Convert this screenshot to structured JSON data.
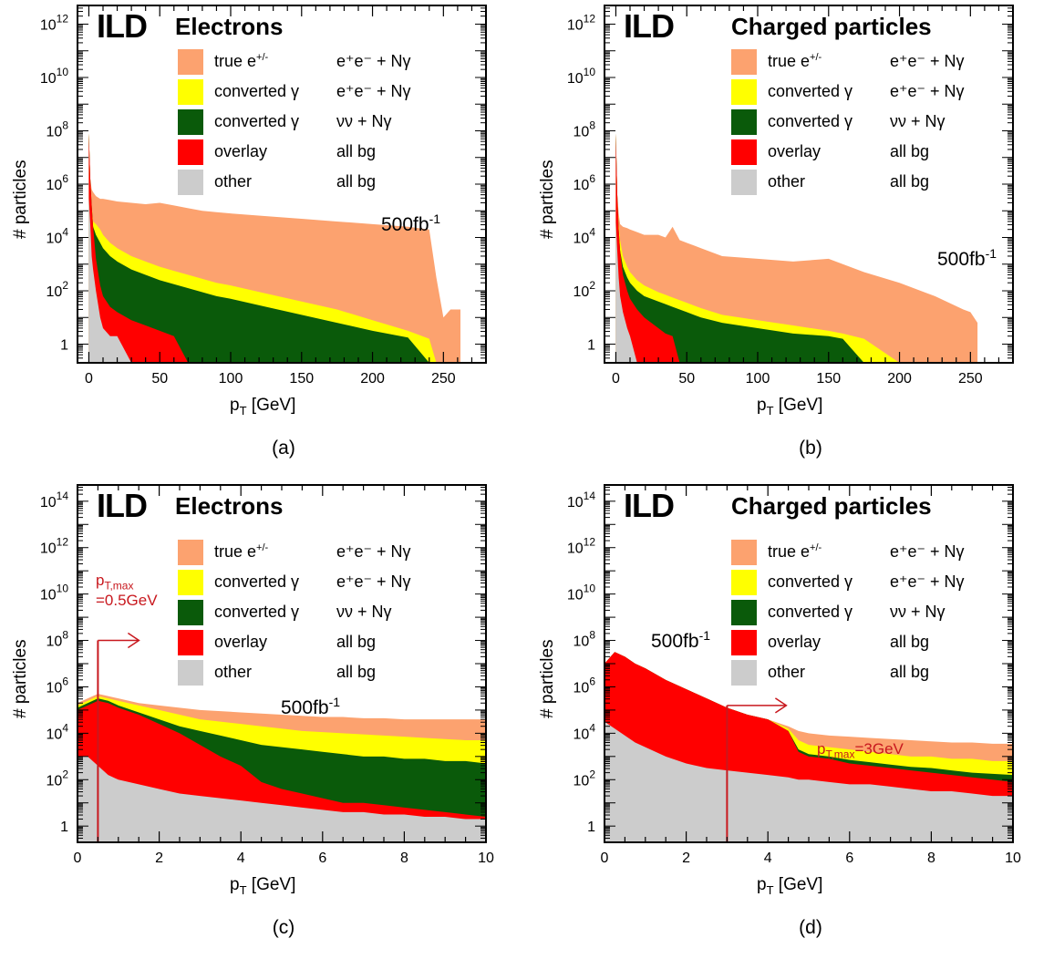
{
  "figure": {
    "panels": [
      {
        "id": "a",
        "sublabel": "(a)",
        "ild": "ILD",
        "title": "Electrons",
        "lumi": "500fb",
        "lumi_sup": "-1",
        "ylabel": "# particles",
        "xlabel_main": "p",
        "xlabel_sub": "T",
        "xlabel_unit": " [GeV]",
        "legend": [
          {
            "label_main": "true e",
            "label_sup": "+/-",
            "process": "e⁺e⁻ + Nγ",
            "color": "#fca26f"
          },
          {
            "label_main": "converted γ",
            "label_sup": "",
            "process": "e⁺e⁻ + Nγ",
            "color": "#ffff00"
          },
          {
            "label_main": "converted γ",
            "label_sup": "",
            "process": "νν + Nγ",
            "color": "#0a5a0a"
          },
          {
            "label_main": "overlay",
            "label_sup": "",
            "process": "all bg",
            "color": "#ff0000"
          },
          {
            "label_main": "other",
            "label_sup": "",
            "process": "all bg",
            "color": "#cccccc"
          }
        ]
      },
      {
        "id": "b",
        "sublabel": "(b)",
        "ild": "ILD",
        "title": "Charged particles",
        "lumi": "500fb",
        "lumi_sup": "-1",
        "ylabel": "# particles",
        "xlabel_main": "p",
        "xlabel_sub": "T",
        "xlabel_unit": " [GeV]",
        "legend": [
          {
            "label_main": "true e",
            "label_sup": "+/-",
            "process": "e⁺e⁻ + Nγ",
            "color": "#fca26f"
          },
          {
            "label_main": "converted γ",
            "label_sup": "",
            "process": "e⁺e⁻ + Nγ",
            "color": "#ffff00"
          },
          {
            "label_main": "converted γ",
            "label_sup": "",
            "process": "νν + Nγ",
            "color": "#0a5a0a"
          },
          {
            "label_main": "overlay",
            "label_sup": "",
            "process": "all bg",
            "color": "#ff0000"
          },
          {
            "label_main": "other",
            "label_sup": "",
            "process": "all bg",
            "color": "#cccccc"
          }
        ]
      },
      {
        "id": "c",
        "sublabel": "(c)",
        "ild": "ILD",
        "title": "Electrons",
        "lumi": "500fb",
        "lumi_sup": "-1",
        "ylabel": "# particles",
        "xlabel_main": "p",
        "xlabel_sub": "T",
        "xlabel_unit": " [GeV]",
        "annotation_main": "p",
        "annotation_sub": "T,max",
        "annotation_value": "=0.5GeV",
        "legend": [
          {
            "label_main": "true e",
            "label_sup": "+/-",
            "process": "e⁺e⁻ + Nγ",
            "color": "#fca26f"
          },
          {
            "label_main": "converted γ",
            "label_sup": "",
            "process": "e⁺e⁻ + Nγ",
            "color": "#ffff00"
          },
          {
            "label_main": "converted γ",
            "label_sup": "",
            "process": "νν + Nγ",
            "color": "#0a5a0a"
          },
          {
            "label_main": "overlay",
            "label_sup": "",
            "process": "all bg",
            "color": "#ff0000"
          },
          {
            "label_main": "other",
            "label_sup": "",
            "process": "all bg",
            "color": "#cccccc"
          }
        ]
      },
      {
        "id": "d",
        "sublabel": "(d)",
        "ild": "ILD",
        "title": "Charged particles",
        "lumi": "500fb",
        "lumi_sup": "-1",
        "ylabel": "# particles",
        "xlabel_main": "p",
        "xlabel_sub": "T",
        "xlabel_unit": " [GeV]",
        "annotation_main": "p",
        "annotation_sub": "T,max",
        "annotation_value": "=3GeV",
        "legend": [
          {
            "label_main": "true e",
            "label_sup": "+/-",
            "process": "e⁺e⁻ + Nγ",
            "color": "#fca26f"
          },
          {
            "label_main": "converted γ",
            "label_sup": "",
            "process": "e⁺e⁻ + Nγ",
            "color": "#ffff00"
          },
          {
            "label_main": "converted γ",
            "label_sup": "",
            "process": "νν + Nγ",
            "color": "#0a5a0a"
          },
          {
            "label_main": "overlay",
            "label_sup": "",
            "process": "all bg",
            "color": "#ff0000"
          },
          {
            "label_main": "other",
            "label_sup": "",
            "process": "all bg",
            "color": "#cccccc"
          }
        ]
      }
    ]
  },
  "chart_data": [
    {
      "type": "area",
      "stacked": true,
      "log_y": true,
      "xlim": [
        -8,
        280
      ],
      "ylim_exp": [
        -0.7,
        12.7
      ],
      "xticks": [
        0,
        50,
        100,
        150,
        200,
        250
      ],
      "yticks_exp": [
        0,
        2,
        4,
        6,
        8,
        10,
        12
      ],
      "x": [
        0,
        1,
        2,
        3,
        5,
        8,
        10,
        15,
        20,
        30,
        40,
        50,
        60,
        70,
        80,
        90,
        100,
        125,
        150,
        175,
        200,
        225,
        240,
        245,
        250,
        255,
        262
      ],
      "series": [
        {
          "name": "other",
          "log10_values": [
            5.5,
            4.5,
            3.3,
            2.8,
            2.0,
            1.0,
            0.6,
            0.3,
            0.3,
            0,
            0,
            0,
            0,
            0,
            0,
            0,
            0,
            0,
            0,
            0,
            0,
            0,
            0,
            0,
            0,
            0,
            0
          ]
        },
        {
          "name": "overlay",
          "log10_values": [
            7.9,
            6.2,
            5.2,
            4.4,
            3.2,
            2.2,
            1.8,
            1.4,
            1.2,
            0.9,
            0.7,
            0.5,
            0.3,
            0,
            0,
            0,
            0,
            0,
            0,
            0,
            0,
            0,
            0,
            0,
            0,
            0,
            0
          ]
        },
        {
          "name": "converted γ (νν + Nγ)",
          "log10_values": [
            7.9,
            6.2,
            5.2,
            4.4,
            4.1,
            3.8,
            3.6,
            3.3,
            3.1,
            2.8,
            2.6,
            2.4,
            2.25,
            2.1,
            1.95,
            1.8,
            1.7,
            1.4,
            1.1,
            0.8,
            0.5,
            0.25,
            0,
            0,
            0,
            0,
            0
          ]
        },
        {
          "name": "converted γ (e⁺e⁻ + Nγ)",
          "log10_values": [
            7.9,
            6.2,
            5.2,
            4.6,
            4.5,
            4.3,
            4.1,
            3.8,
            3.6,
            3.3,
            3.1,
            2.9,
            2.75,
            2.6,
            2.45,
            2.3,
            2.2,
            1.9,
            1.6,
            1.3,
            0.9,
            0.5,
            0.2,
            0,
            0,
            0,
            0
          ]
        },
        {
          "name": "true e+/-",
          "log10_values": [
            7.9,
            6.2,
            5.8,
            5.7,
            5.55,
            5.45,
            5.45,
            5.4,
            5.35,
            5.3,
            5.25,
            5.3,
            5.2,
            5.1,
            5.0,
            4.95,
            4.9,
            4.8,
            4.7,
            4.6,
            4.5,
            4.4,
            4.3,
            2.5,
            1.0,
            1.3,
            1.3
          ]
        }
      ]
    },
    {
      "type": "area",
      "stacked": true,
      "log_y": true,
      "xlim": [
        -8,
        280
      ],
      "ylim_exp": [
        -0.7,
        12.7
      ],
      "xticks": [
        0,
        50,
        100,
        150,
        200,
        250
      ],
      "yticks_exp": [
        0,
        2,
        4,
        6,
        8,
        10,
        12
      ],
      "x": [
        0,
        1,
        2,
        3,
        5,
        8,
        10,
        15,
        20,
        30,
        35,
        40,
        45,
        50,
        60,
        75,
        100,
        125,
        150,
        160,
        175,
        200,
        225,
        245,
        250,
        255
      ],
      "series": [
        {
          "name": "other",
          "log10_values": [
            4.6,
            3.5,
            2.5,
            1.8,
            1.2,
            0.6,
            0.3,
            0,
            0,
            0,
            0,
            0,
            0,
            0,
            0,
            0,
            0,
            0,
            0,
            0,
            0,
            0,
            0,
            0,
            0,
            0
          ]
        },
        {
          "name": "overlay",
          "log10_values": [
            7.9,
            5.6,
            4.3,
            3.5,
            2.6,
            2.0,
            1.7,
            1.3,
            1.0,
            0.6,
            0.4,
            0.3,
            0,
            0,
            0,
            0,
            0,
            0,
            0,
            0,
            0,
            0,
            0,
            0,
            0,
            0
          ]
        },
        {
          "name": "converted γ (νν + Nγ)",
          "log10_values": [
            7.9,
            5.6,
            4.3,
            3.5,
            2.9,
            2.5,
            2.3,
            2.0,
            1.8,
            1.6,
            1.5,
            1.4,
            1.3,
            1.2,
            1.0,
            0.8,
            0.6,
            0.4,
            0.3,
            0.2,
            0,
            0,
            0,
            0,
            0,
            0
          ]
        },
        {
          "name": "converted γ (e⁺e⁻ + Nγ)",
          "log10_values": [
            7.9,
            5.6,
            4.5,
            3.9,
            3.3,
            2.9,
            2.7,
            2.4,
            2.2,
            1.95,
            1.85,
            1.75,
            1.65,
            1.55,
            1.35,
            1.1,
            0.9,
            0.7,
            0.5,
            0.4,
            0.2,
            0,
            0,
            0,
            0,
            0
          ]
        },
        {
          "name": "true e+/-",
          "log10_values": [
            7.9,
            5.6,
            4.9,
            4.5,
            4.4,
            4.35,
            4.3,
            4.2,
            4.1,
            4.1,
            4.0,
            4.4,
            3.9,
            3.8,
            3.6,
            3.3,
            3.2,
            3.1,
            3.2,
            3.0,
            2.7,
            2.3,
            1.8,
            1.3,
            1.2,
            0.8
          ]
        }
      ]
    },
    {
      "type": "area",
      "stacked": true,
      "log_y": true,
      "xlim": [
        0,
        10
      ],
      "ylim_exp": [
        -0.7,
        14.7
      ],
      "xticks": [
        0,
        2,
        4,
        6,
        8,
        10
      ],
      "yticks_exp": [
        0,
        2,
        4,
        6,
        8,
        10,
        12,
        14
      ],
      "vline_x": 0.5,
      "x": [
        0,
        0.25,
        0.5,
        0.75,
        1.0,
        1.5,
        2.0,
        2.5,
        3.0,
        3.5,
        4.0,
        4.5,
        5.0,
        5.5,
        6.0,
        6.5,
        7.0,
        7.5,
        8.0,
        8.5,
        9.0,
        9.5,
        10.0
      ],
      "series": [
        {
          "name": "other",
          "log10_values": [
            3.0,
            3.0,
            2.6,
            2.2,
            2.0,
            1.8,
            1.6,
            1.4,
            1.3,
            1.2,
            1.1,
            1.0,
            0.9,
            0.8,
            0.7,
            0.6,
            0.6,
            0.5,
            0.5,
            0.4,
            0.4,
            0.3,
            0.3
          ]
        },
        {
          "name": "overlay",
          "log10_values": [
            5.0,
            5.2,
            5.4,
            5.3,
            5.1,
            4.8,
            4.4,
            4.0,
            3.5,
            3.0,
            2.6,
            1.9,
            1.6,
            1.4,
            1.2,
            1.0,
            1.0,
            0.9,
            0.8,
            0.7,
            0.6,
            0.5,
            0.4
          ]
        },
        {
          "name": "converted γ (νν + Nγ)",
          "log10_values": [
            5.1,
            5.3,
            5.5,
            5.4,
            5.2,
            4.9,
            4.6,
            4.3,
            4.1,
            3.9,
            3.7,
            3.5,
            3.4,
            3.3,
            3.2,
            3.1,
            3.0,
            3.0,
            2.9,
            2.9,
            2.8,
            2.8,
            2.7
          ]
        },
        {
          "name": "converted γ (e⁺e⁻ + Nγ)",
          "log10_values": [
            5.2,
            5.4,
            5.6,
            5.5,
            5.4,
            5.2,
            5.0,
            4.8,
            4.6,
            4.5,
            4.4,
            4.3,
            4.2,
            4.1,
            4.05,
            4.0,
            3.95,
            3.9,
            3.85,
            3.8,
            3.75,
            3.7,
            3.7
          ]
        },
        {
          "name": "true e+/-",
          "log10_values": [
            5.3,
            5.5,
            5.7,
            5.6,
            5.5,
            5.3,
            5.2,
            5.1,
            5.0,
            4.95,
            4.9,
            4.85,
            4.8,
            4.75,
            4.7,
            4.7,
            4.65,
            4.65,
            4.6,
            4.6,
            4.6,
            4.6,
            4.6
          ]
        }
      ]
    },
    {
      "type": "area",
      "stacked": true,
      "log_y": true,
      "xlim": [
        0,
        10
      ],
      "ylim_exp": [
        -0.7,
        14.7
      ],
      "xticks": [
        0,
        2,
        4,
        6,
        8,
        10
      ],
      "yticks_exp": [
        0,
        2,
        4,
        6,
        8,
        10,
        12,
        14
      ],
      "vline_x": 3,
      "x": [
        0,
        0.25,
        0.5,
        0.75,
        1.0,
        1.5,
        2.0,
        2.5,
        3.0,
        3.5,
        4.0,
        4.5,
        4.75,
        5.0,
        5.5,
        6.0,
        6.5,
        7.0,
        7.5,
        8.0,
        8.5,
        9.0,
        9.5,
        10.0
      ],
      "series": [
        {
          "name": "other",
          "log10_values": [
            4.5,
            4.2,
            3.9,
            3.6,
            3.4,
            3.0,
            2.7,
            2.5,
            2.4,
            2.3,
            2.2,
            2.1,
            2.0,
            2.0,
            1.9,
            1.8,
            1.8,
            1.7,
            1.6,
            1.5,
            1.5,
            1.4,
            1.3,
            1.3
          ]
        },
        {
          "name": "overlay",
          "log10_values": [
            7.0,
            7.5,
            7.3,
            7.0,
            6.8,
            6.3,
            5.9,
            5.5,
            5.1,
            4.8,
            4.6,
            4.1,
            3.2,
            3.0,
            2.9,
            2.7,
            2.6,
            2.5,
            2.4,
            2.3,
            2.2,
            2.1,
            2.0,
            1.9
          ]
        },
        {
          "name": "converted γ (νν + Nγ)",
          "log10_values": [
            7.0,
            7.5,
            7.3,
            7.0,
            6.8,
            6.3,
            5.9,
            5.5,
            5.1,
            4.8,
            4.6,
            4.1,
            3.3,
            3.1,
            3.0,
            2.85,
            2.75,
            2.65,
            2.55,
            2.5,
            2.4,
            2.3,
            2.25,
            2.2
          ]
        },
        {
          "name": "converted γ (e⁺e⁻ + Nγ)",
          "log10_values": [
            7.0,
            7.5,
            7.3,
            7.0,
            6.8,
            6.3,
            5.9,
            5.5,
            5.1,
            4.8,
            4.6,
            4.2,
            3.7,
            3.5,
            3.4,
            3.3,
            3.2,
            3.1,
            3.0,
            3.0,
            2.9,
            2.9,
            2.8,
            2.8
          ]
        },
        {
          "name": "true e+/-",
          "log10_values": [
            7.0,
            7.5,
            7.3,
            7.0,
            6.8,
            6.3,
            5.9,
            5.5,
            5.1,
            4.8,
            4.6,
            4.3,
            4.1,
            4.0,
            3.9,
            3.85,
            3.8,
            3.75,
            3.7,
            3.65,
            3.6,
            3.6,
            3.55,
            3.55
          ]
        }
      ]
    }
  ]
}
